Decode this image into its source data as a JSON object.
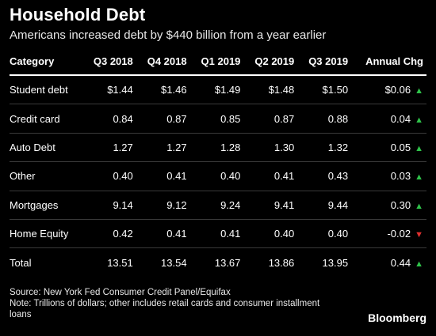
{
  "chart_data": {
    "type": "table",
    "title": "Household Debt",
    "subtitle": "Americans increased debt by $440 billion from a year earlier",
    "columns": [
      "Category",
      "Q3 2018",
      "Q4 2018",
      "Q1 2019",
      "Q2 2019",
      "Q3 2019",
      "Annual Chg"
    ],
    "rows": [
      {
        "category": "Student debt",
        "values": [
          "$1.44",
          "$1.46",
          "$1.49",
          "$1.48",
          "$1.50"
        ],
        "change": "$0.06",
        "direction": "up"
      },
      {
        "category": "Credit card",
        "values": [
          "0.84",
          "0.87",
          "0.85",
          "0.87",
          "0.88"
        ],
        "change": "0.04",
        "direction": "up"
      },
      {
        "category": "Auto Debt",
        "values": [
          "1.27",
          "1.27",
          "1.28",
          "1.30",
          "1.32"
        ],
        "change": "0.05",
        "direction": "up"
      },
      {
        "category": "Other",
        "values": [
          "0.40",
          "0.41",
          "0.40",
          "0.41",
          "0.43"
        ],
        "change": "0.03",
        "direction": "up"
      },
      {
        "category": "Mortgages",
        "values": [
          "9.14",
          "9.12",
          "9.24",
          "9.41",
          "9.44"
        ],
        "change": "0.30",
        "direction": "up"
      },
      {
        "category": "Home Equity",
        "values": [
          "0.42",
          "0.41",
          "0.41",
          "0.40",
          "0.40"
        ],
        "change": "-0.02",
        "direction": "down"
      },
      {
        "category": "Total",
        "values": [
          "13.51",
          "13.54",
          "13.67",
          "13.86",
          "13.95"
        ],
        "change": "0.44",
        "direction": "up"
      }
    ],
    "colors": {
      "up": "#2fc24a",
      "down": "#e0302f",
      "background": "#000000",
      "text": "#ffffff"
    }
  },
  "footer": {
    "source": "Source: New York Fed Consumer Credit Panel/Equifax",
    "note": "Note: Trillions of dollars; other includes retail cards and consumer installment loans",
    "brand": "Bloomberg"
  }
}
